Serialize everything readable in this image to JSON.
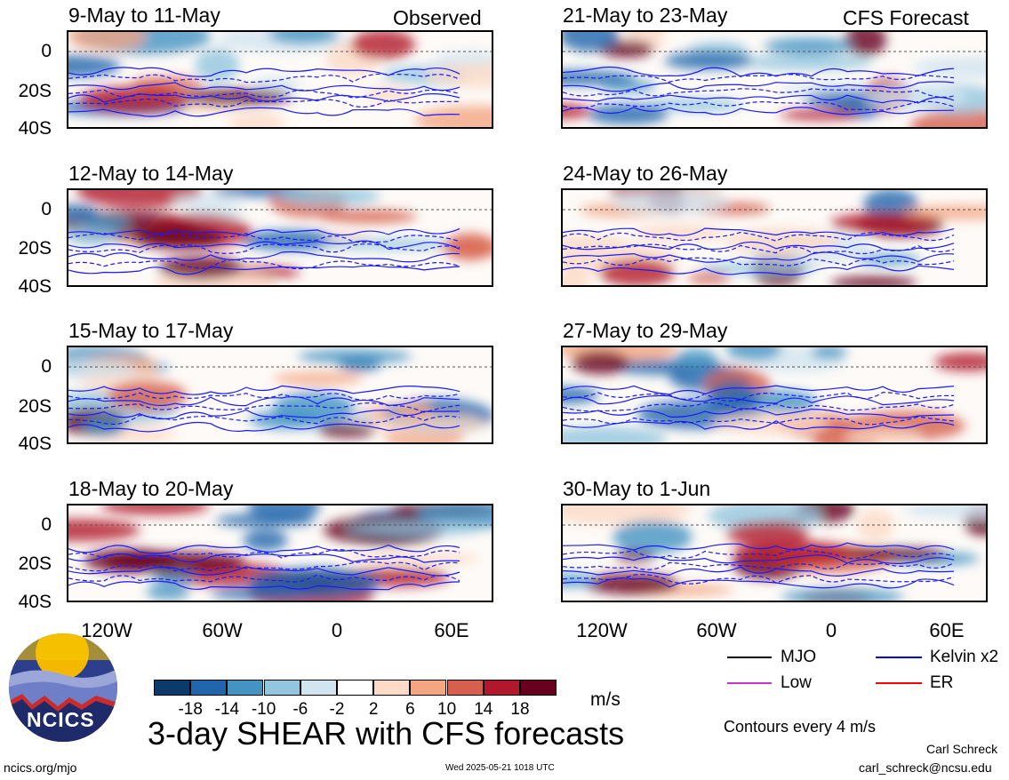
{
  "headers": {
    "left": "Observed",
    "right": "CFS Forecast"
  },
  "panels_left": [
    {
      "title": "9-May to 11-May"
    },
    {
      "title": "12-May to 14-May"
    },
    {
      "title": "15-May to 17-May"
    },
    {
      "title": "18-May to 20-May"
    }
  ],
  "panels_right": [
    {
      "title": "21-May to 23-May"
    },
    {
      "title": "24-May to 26-May"
    },
    {
      "title": "27-May to 29-May"
    },
    {
      "title": "30-May to 1-Jun"
    }
  ],
  "yticks": [
    "0",
    "20S",
    "40S"
  ],
  "xticks": [
    "120W",
    "60W",
    "0",
    "60E"
  ],
  "colorbar": {
    "labels": [
      "-18",
      "-14",
      "-10",
      "-6",
      "-2",
      "2",
      "6",
      "10",
      "14",
      "18"
    ],
    "colors": [
      "#0b3a6b",
      "#2166ac",
      "#4393c3",
      "#92c5de",
      "#d1e5f0",
      "#ffffff",
      "#fddbc7",
      "#f4a582",
      "#d6604d",
      "#b2182b",
      "#67001f"
    ],
    "units": "m/s"
  },
  "legend": {
    "items": [
      {
        "label": "MJO",
        "color": "#000000"
      },
      {
        "label": "Kelvin x2",
        "color": "#0000ff"
      },
      {
        "label": "Low",
        "color": "#cc33cc"
      },
      {
        "label": "ER",
        "color": "#ff0000"
      }
    ],
    "contour_note": "Contours every 4 m/s"
  },
  "title": "3-day SHEAR with CFS forecasts",
  "logo_text": "NCICS",
  "footer": {
    "url": "ncics.org/mjo",
    "timestamp": "Wed 2025-05-21 1018 UTC",
    "author": "Carl Schreck",
    "email": "carl_schreck@ncsu.edu"
  },
  "chart_data": {
    "type": "heatmap",
    "variable": "3-day SHEAR",
    "units": "m/s",
    "contour_interval": "4 m/s",
    "color_levels": [
      -18,
      -14,
      -10,
      -6,
      -2,
      2,
      6,
      10,
      14,
      18
    ],
    "x_axis_ticks": [
      "120W",
      "60W",
      "0",
      "60E"
    ],
    "y_axis_ticks": [
      "0",
      "20S",
      "40S"
    ],
    "observed_periods": [
      "9-May to 11-May",
      "12-May to 14-May",
      "15-May to 17-May",
      "18-May to 20-May"
    ],
    "forecast_periods": [
      "21-May to 23-May",
      "24-May to 26-May",
      "27-May to 29-May",
      "30-May to 1-Jun"
    ],
    "legend": [
      "MJO",
      "Kelvin x2",
      "Low",
      "ER"
    ]
  }
}
